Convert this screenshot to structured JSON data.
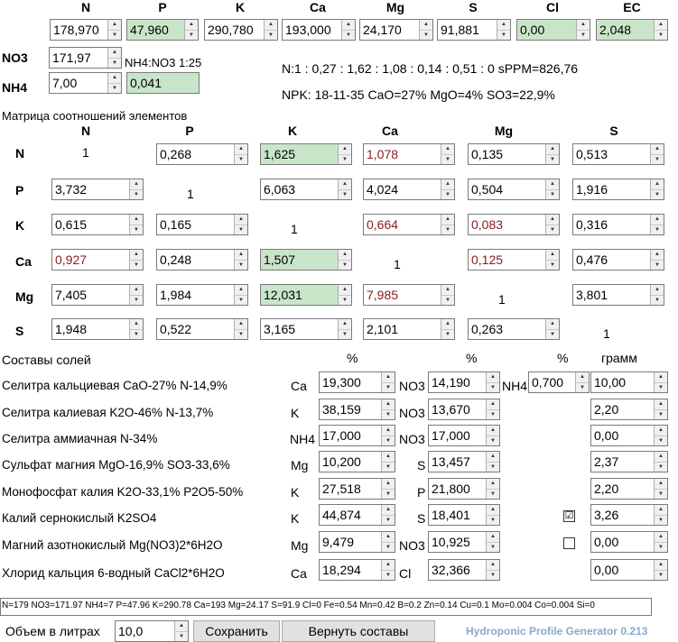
{
  "top": {
    "headers": [
      "N",
      "P",
      "K",
      "Ca",
      "Mg",
      "S",
      "Cl",
      "EC"
    ],
    "values": [
      "178,970",
      "47,960",
      "290,780",
      "193,000",
      "24,170",
      "91,881",
      "0,00",
      "2,048"
    ],
    "no3_label": "NO3",
    "no3_value": "171,97",
    "nh4_label": "NH4",
    "nh4_value": "7,00",
    "nh4_ratio": "0,041",
    "nh4no3_text": "NH4:NO3 1:25",
    "ratio_text": "N:1 : 0,27 : 1,62 : 1,08 : 0,14 : 0,51 : 0 sPPM=826,76",
    "npk_text": "NPK: 18-11-35 CaO=27% MgO=4% SO3=22,9%"
  },
  "matrix": {
    "title": "Матрица соотношений элементов",
    "cols": [
      "N",
      "P",
      "K",
      "Ca",
      "Mg",
      "S"
    ],
    "rows": [
      "N",
      "P",
      "K",
      "Ca",
      "Mg",
      "S"
    ],
    "cells": [
      [
        "1",
        "0,268",
        "1,625",
        "1,078",
        "0,135",
        "0,513"
      ],
      [
        "3,732",
        "1",
        "6,063",
        "4,024",
        "0,504",
        "1,916"
      ],
      [
        "0,615",
        "0,165",
        "1",
        "0,664",
        "0,083",
        "0,316"
      ],
      [
        "0,927",
        "0,248",
        "1,507",
        "1",
        "0,125",
        "0,476"
      ],
      [
        "7,405",
        "1,984",
        "12,031",
        "7,985",
        "1",
        "3,801"
      ],
      [
        "1,948",
        "0,522",
        "3,165",
        "2,101",
        "0,263",
        "1"
      ]
    ]
  },
  "salts": {
    "title": "Составы солей",
    "pct1": "%",
    "pct2": "%",
    "pct3": "%",
    "gram": "грамм",
    "items": [
      {
        "name": "Селитра кальциевая CaO-27% N-14,9%",
        "el1": "Ca",
        "v1": "19,300",
        "el2": "NO3",
        "v2": "14,190",
        "el3": "NH4",
        "v3": "0,700",
        "grams": "10,00"
      },
      {
        "name": "Селитра калиевая K2O-46% N-13,7%",
        "el1": "K",
        "v1": "38,159",
        "el2": "NO3",
        "v2": "13,670",
        "grams": "2,20"
      },
      {
        "name": "Селитра аммиачная N-34%",
        "el1": "NH4",
        "v1": "17,000",
        "el2": "NO3",
        "v2": "17,000",
        "grams": "0,00"
      },
      {
        "name": "Сульфат магния MgO-16,9% SO3-33,6%",
        "el1": "Mg",
        "v1": "10,200",
        "el2": "S",
        "v2": "13,457",
        "grams": "2,37"
      },
      {
        "name": "Монофосфат калия K2O-33,1% P2O5-50%",
        "el1": "K",
        "v1": "27,518",
        "el2": "P",
        "v2": "21,800",
        "grams": "2,20"
      },
      {
        "name": "Калий сернокислый K2SO4",
        "el1": "K",
        "v1": "44,874",
        "el2": "S",
        "v2": "18,401",
        "check": "☑",
        "grams": "3,26"
      },
      {
        "name": "Магний азотнокислый Mg(NO3)2*6H2O",
        "el1": "Mg",
        "v1": "9,479",
        "el2": "NO3",
        "v2": "10,925",
        "check": " ",
        "grams": "0,00"
      },
      {
        "name": "Хлорид кальция 6-водный CaCl2*6H2O",
        "el1": "Ca",
        "v1": "18,294",
        "el2": "Cl",
        "v2": "32,366",
        "grams": "0,00"
      }
    ]
  },
  "status_text": "N=179 NO3=171.97 NH4=7 P=47.96 K=290.78 Ca=193 Mg=24.17 S=91.9 Cl=0 Fe=0.54 Mn=0.42 B=0.2 Zn=0.14 Cu=0.1 Mo=0.004 Co=0.004 Si=0",
  "bottom": {
    "volume_label": "Объем в литрах",
    "volume_value": "10,0",
    "save_label": "Сохранить",
    "restore_label": "Вернуть составы",
    "version": "Hydroponic Profile Generator 0.213"
  },
  "colors": {
    "green_field": "#c9e5c9",
    "red_text": "#8b1a1a",
    "version_text": "#8aa9c9"
  }
}
